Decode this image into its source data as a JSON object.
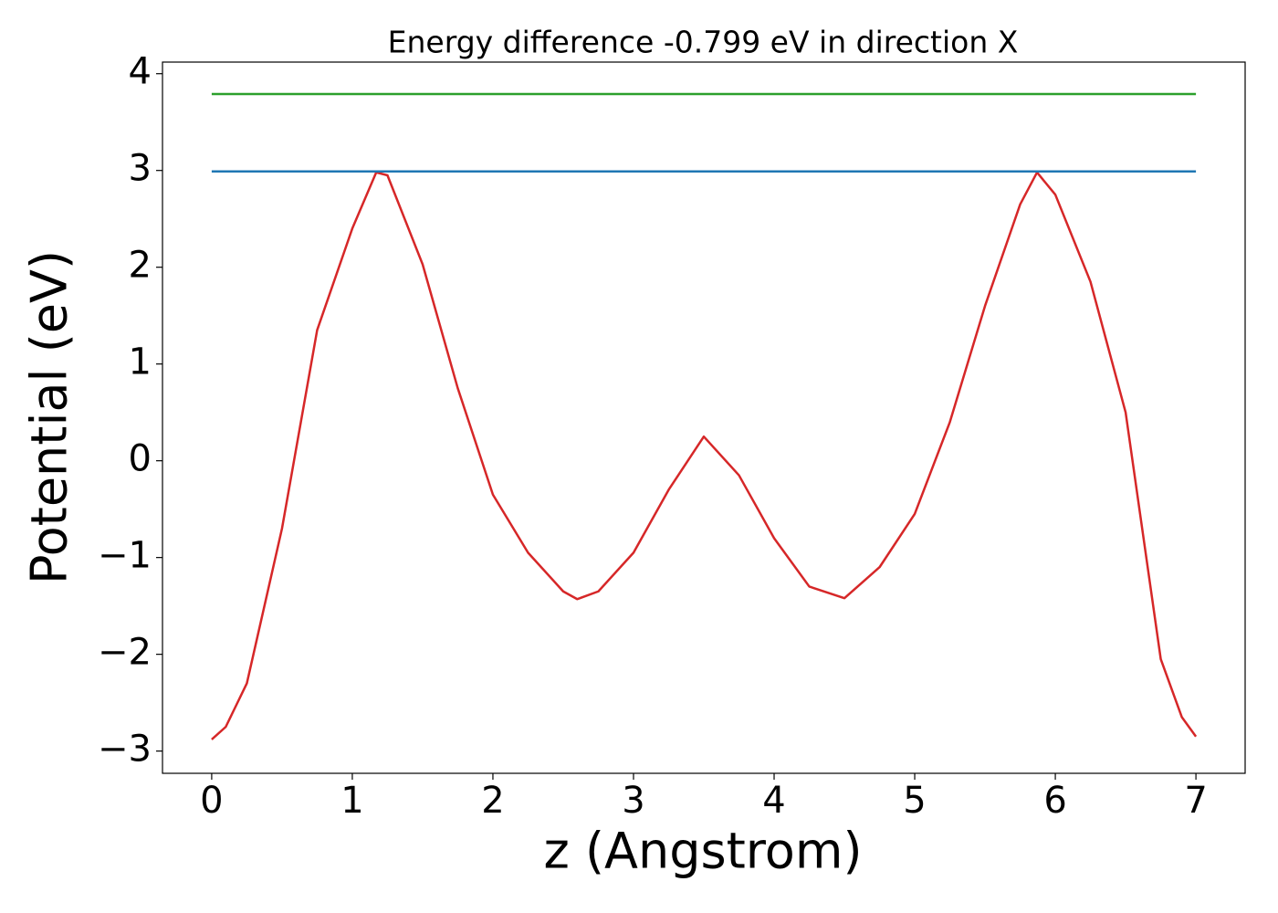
{
  "chart_data": {
    "type": "line",
    "title": "Energy difference -0.799 eV in direction X",
    "x_label": "z (Angstrom)",
    "y_label": "Potential (eV)",
    "xlim": [
      -0.35,
      7.35
    ],
    "ylim": [
      -3.23,
      4.12
    ],
    "xticks": [
      0,
      1,
      2,
      3,
      4,
      5,
      6,
      7
    ],
    "yticks": [
      {
        "value": -3,
        "label": "−3"
      },
      {
        "value": -2,
        "label": "−2"
      },
      {
        "value": -1,
        "label": "−1"
      },
      0,
      1,
      2,
      3,
      4
    ],
    "grid": false,
    "series": [
      {
        "color": "#d62728",
        "x": [
          0,
          0.1,
          0.25,
          0.5,
          0.75,
          1.0,
          1.17,
          1.25,
          1.5,
          1.75,
          2.0,
          2.25,
          2.5,
          2.6,
          2.75,
          3.0,
          3.25,
          3.5,
          3.75,
          4.0,
          4.25,
          4.5,
          4.75,
          5.0,
          5.25,
          5.5,
          5.75,
          5.87,
          6.0,
          6.25,
          6.5,
          6.75,
          6.9,
          7.0
        ],
        "values": [
          -2.88,
          -2.75,
          -2.3,
          -0.7,
          1.35,
          2.4,
          2.98,
          2.95,
          2.03,
          0.75,
          -0.35,
          -0.95,
          -1.35,
          -1.43,
          -1.35,
          -0.95,
          -0.3,
          0.25,
          -0.15,
          -0.8,
          -1.3,
          -1.42,
          -1.1,
          -0.55,
          0.4,
          1.6,
          2.65,
          2.98,
          2.75,
          1.85,
          0.5,
          -2.05,
          -2.65,
          -2.85
        ]
      },
      {
        "color": "#1f77b4",
        "x": [
          0,
          7
        ],
        "values": [
          2.99,
          2.99
        ]
      },
      {
        "color": "#2ca02c",
        "x": [
          0,
          7
        ],
        "values": [
          3.79,
          3.79
        ]
      }
    ]
  }
}
